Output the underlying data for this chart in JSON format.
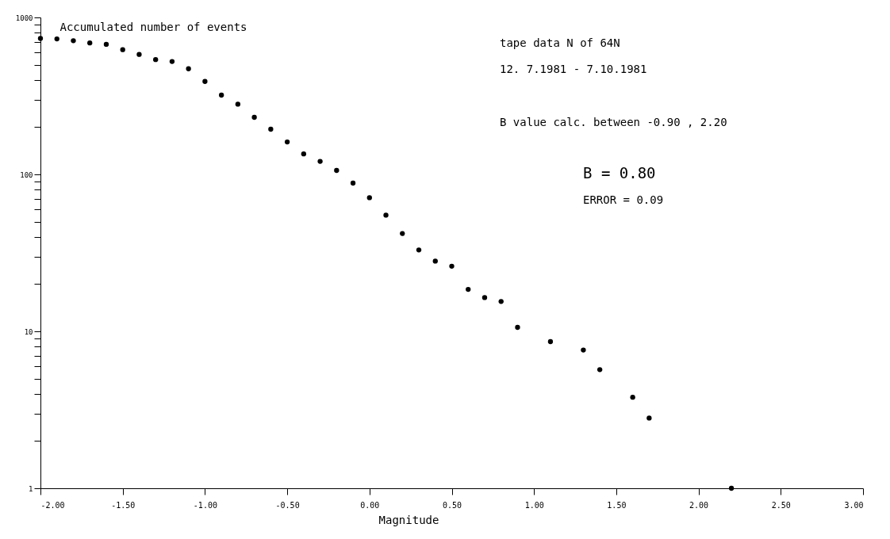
{
  "chart_data": {
    "type": "scatter",
    "ylabel": "Accumulated number of events",
    "xlabel": "Magnitude",
    "x": [
      -2.0,
      -1.9,
      -1.8,
      -1.7,
      -1.6,
      -1.5,
      -1.4,
      -1.3,
      -1.2,
      -1.1,
      -1.0,
      -0.9,
      -0.8,
      -0.7,
      -0.6,
      -0.5,
      -0.4,
      -0.3,
      -0.2,
      -0.1,
      0.0,
      0.1,
      0.2,
      0.3,
      0.4,
      0.5,
      0.6,
      0.7,
      0.8,
      0.9,
      1.1,
      1.3,
      1.4,
      1.6,
      1.7,
      2.2
    ],
    "series": [
      {
        "color": "#000000",
        "values": [
          735,
          730,
          711,
          688,
          674,
          623,
          581,
          539,
          524,
          471,
          391,
          320,
          280,
          231,
          194,
          161,
          135,
          121,
          106,
          88,
          71,
          55,
          42,
          33,
          28,
          26,
          18.5,
          16.4,
          15.5,
          10.6,
          8.6,
          7.6,
          5.7,
          3.8,
          2.8,
          1
        ]
      }
    ],
    "log": "y",
    "grid": false,
    "marker": "circle",
    "xlim": [
      -2,
      3
    ],
    "xticks": [
      {
        "value": -2,
        "label": "-2.00"
      },
      {
        "value": -1.5,
        "label": "-1.50"
      },
      {
        "value": -1,
        "label": "-1.00"
      },
      {
        "value": -0.5,
        "label": "-0.50"
      },
      {
        "value": 0,
        "label": "0.00"
      },
      {
        "value": 0.5,
        "label": "0.50"
      },
      {
        "value": 1,
        "label": "1.00"
      },
      {
        "value": 1.5,
        "label": "1.50"
      },
      {
        "value": 2,
        "label": "2.00"
      },
      {
        "value": 2.5,
        "label": "2.50"
      },
      {
        "value": 3,
        "label": "3.00"
      }
    ],
    "ylim": [
      1,
      1000
    ],
    "yticks": [
      1,
      {
        "value": 2,
        "label": null
      },
      {
        "value": 3,
        "label": null
      },
      {
        "value": 4,
        "label": null
      },
      {
        "value": 5,
        "label": null
      },
      {
        "value": 6,
        "label": null
      },
      {
        "value": 7,
        "label": null
      },
      {
        "value": 8,
        "label": null
      },
      {
        "value": 9,
        "label": null
      },
      10,
      {
        "value": 20,
        "label": null
      },
      {
        "value": 30,
        "label": null
      },
      {
        "value": 40,
        "label": null
      },
      {
        "value": 50,
        "label": null
      },
      {
        "value": 60,
        "label": null
      },
      {
        "value": 70,
        "label": null
      },
      {
        "value": 80,
        "label": null
      },
      {
        "value": 90,
        "label": null
      },
      100,
      {
        "value": 200,
        "label": null
      },
      {
        "value": 300,
        "label": null
      },
      {
        "value": 400,
        "label": null
      },
      {
        "value": 500,
        "label": null
      },
      {
        "value": 600,
        "label": null
      },
      {
        "value": 700,
        "label": null
      },
      {
        "value": 800,
        "label": null
      },
      {
        "value": 900,
        "label": null
      },
      1000
    ],
    "annotations": [
      "tape data N of 64N",
      "12. 7.1981  -   7.10.1981",
      "B value calc. between -0.90 ,  2.20",
      "B = 0.80",
      "ERROR = 0.09"
    ]
  }
}
